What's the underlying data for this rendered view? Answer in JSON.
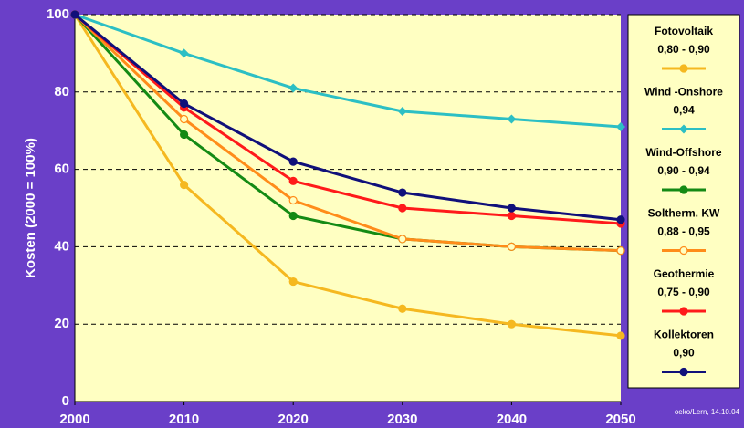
{
  "chart_data": {
    "type": "line",
    "y_label": "Kosten (2000 = 100%)",
    "note": "oeko/Lern, 14.10.04",
    "x": [
      2000,
      2010,
      2020,
      2030,
      2040,
      2050
    ],
    "xlim": [
      2000,
      2050
    ],
    "xticks": [
      2000,
      2010,
      2020,
      2030,
      2040,
      2050
    ],
    "ylim": [
      0,
      100
    ],
    "yticks": [
      0,
      20,
      40,
      60,
      80,
      100
    ],
    "grid": true,
    "series": [
      {
        "name": "Fotovoltaik",
        "range": "0,80 - 0,90",
        "color": "#f5b820",
        "marker": "circle",
        "values": [
          100,
          56,
          31,
          24,
          20,
          17
        ]
      },
      {
        "name": "Wind -Onshore",
        "range": "0,94",
        "color": "#2cbfc4",
        "marker": "diamond",
        "values": [
          100,
          90,
          81,
          75,
          73,
          71
        ]
      },
      {
        "name": "Wind-Offshore",
        "range": "0,90 - 0,94",
        "color": "#148a14",
        "marker": "circle",
        "values": [
          100,
          69,
          48,
          42,
          40,
          39
        ]
      },
      {
        "name": "Soltherm. KW",
        "range": "0,88 - 0,95",
        "color": "#ff8c1a",
        "marker": "open-circle",
        "values": [
          100,
          73,
          52,
          42,
          40,
          39
        ]
      },
      {
        "name": "Geothermie",
        "range": "0,75 - 0,90",
        "color": "#ff1a1a",
        "marker": "circle",
        "values": [
          100,
          76,
          57,
          50,
          48,
          46
        ]
      },
      {
        "name": "Kollektoren",
        "range": "0,90",
        "color": "#10107a",
        "marker": "circle",
        "values": [
          100,
          77,
          62,
          54,
          50,
          47
        ]
      }
    ]
  }
}
